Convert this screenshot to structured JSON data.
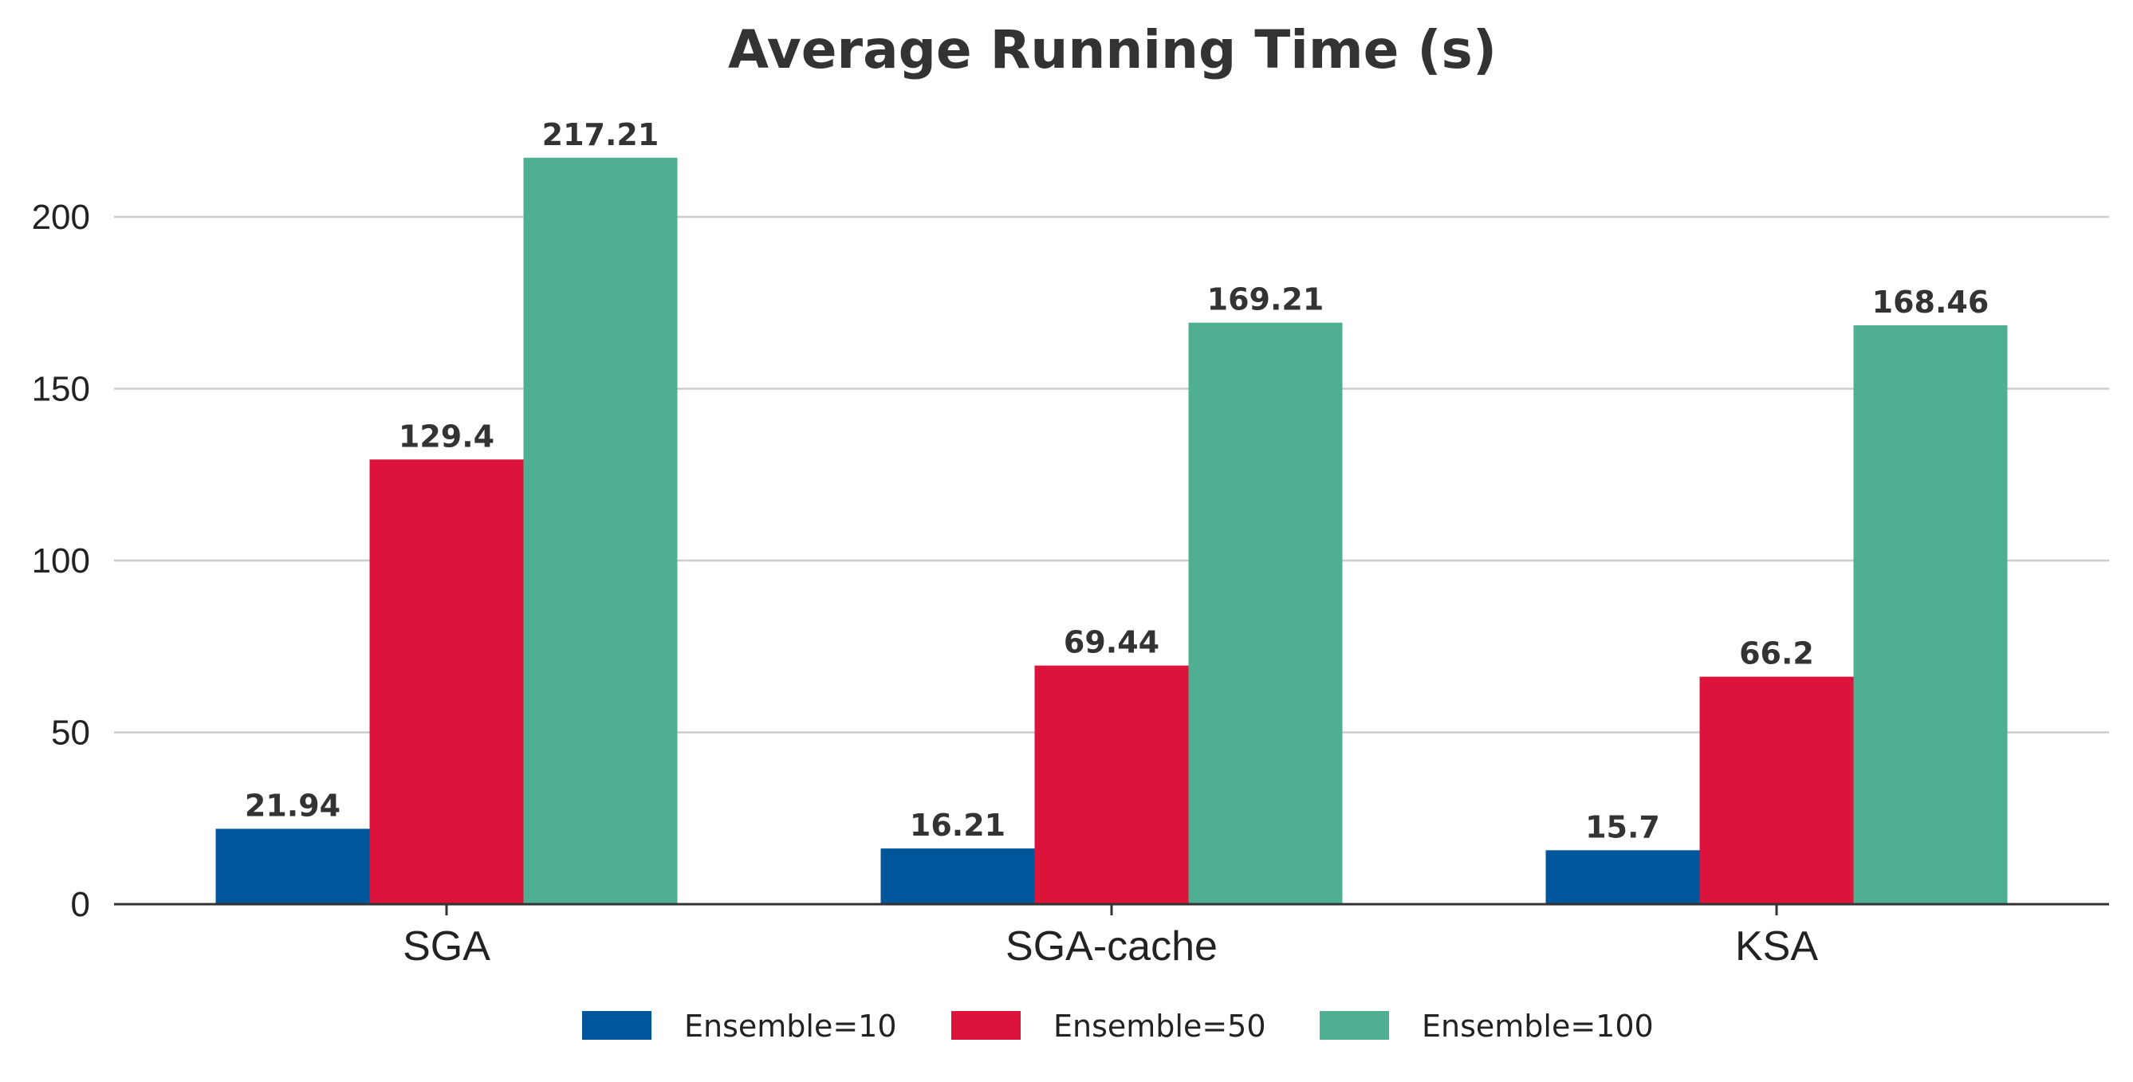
{
  "chart_data": {
    "type": "bar",
    "title": "Average Running Time (s)",
    "xlabel": "",
    "ylabel": "",
    "categories": [
      "SGA",
      "SGA-cache",
      "KSA"
    ],
    "series": [
      {
        "name": "Ensemble=10",
        "color": "#00569b",
        "values": [
          21.94,
          16.21,
          15.7
        ],
        "labels": [
          "21.94",
          "16.21",
          "15.7"
        ]
      },
      {
        "name": "Ensemble=50",
        "color": "#dc143c",
        "values": [
          129.4,
          69.44,
          66.2
        ],
        "labels": [
          "129.4",
          "69.44",
          "66.2"
        ]
      },
      {
        "name": "Ensemble=100",
        "color": "#4faf93",
        "values": [
          217.21,
          169.21,
          168.46
        ],
        "labels": [
          "217.21",
          "169.21",
          "168.46"
        ]
      }
    ],
    "ylim": [
      0,
      200
    ],
    "yticks": [
      0,
      50,
      100,
      150,
      200
    ],
    "ytick_labels": [
      "0",
      "50",
      "100",
      "150",
      "200"
    ],
    "grid": true,
    "legend_position": "bottom"
  }
}
